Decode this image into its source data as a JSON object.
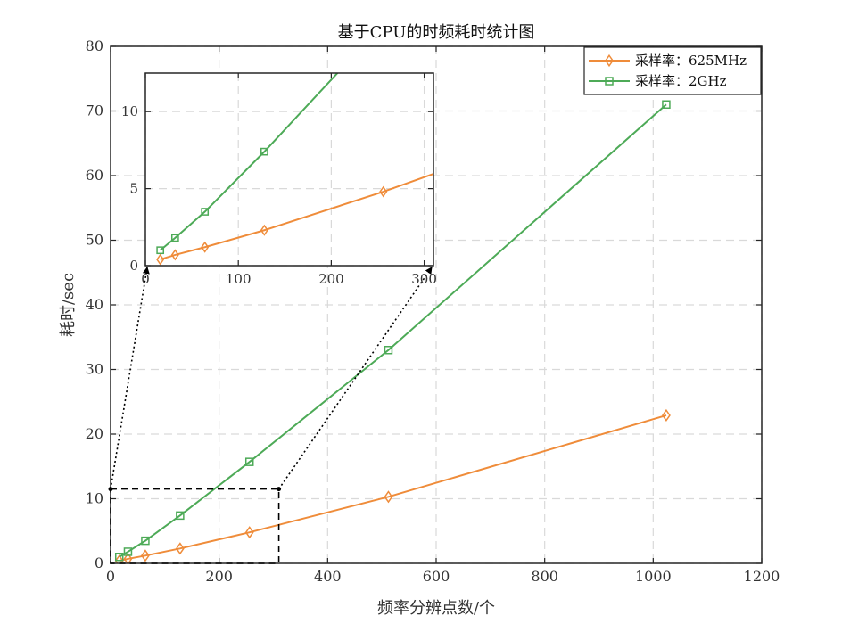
{
  "chart_data": {
    "type": "line",
    "title": "基于CPU的时频耗时统计图",
    "xlabel": "频率分辨点数/个",
    "ylabel": "耗时/sec",
    "xlim": [
      0,
      1200
    ],
    "ylim": [
      0,
      80
    ],
    "xticks": [
      0,
      200,
      400,
      600,
      800,
      1000,
      1200
    ],
    "yticks": [
      0,
      10,
      20,
      30,
      40,
      50,
      60,
      70,
      80
    ],
    "grid": true,
    "legend": "top-right",
    "series": [
      {
        "name": "采样率：625MHz",
        "color": "#ef8c3a",
        "marker": "diamond",
        "x": [
          16,
          32,
          64,
          128,
          256,
          512,
          1024
        ],
        "y": [
          0.4,
          0.7,
          1.2,
          2.3,
          4.8,
          10.3,
          22.9
        ]
      },
      {
        "name": "采样率：2GHz",
        "color": "#4daa57",
        "marker": "square",
        "x": [
          16,
          32,
          64,
          128,
          256,
          512,
          1024
        ],
        "y": [
          1.0,
          1.8,
          3.5,
          7.4,
          15.7,
          33.0,
          71.0
        ]
      }
    ],
    "zoom_region": {
      "xlim": [
        0,
        310
      ],
      "ylim": [
        0,
        11.5
      ]
    },
    "inset": {
      "xlim": [
        0,
        310
      ],
      "ylim": [
        0,
        12.5
      ],
      "xticks": [
        0,
        100,
        200,
        300
      ],
      "yticks": [
        0,
        5,
        10
      ]
    }
  }
}
